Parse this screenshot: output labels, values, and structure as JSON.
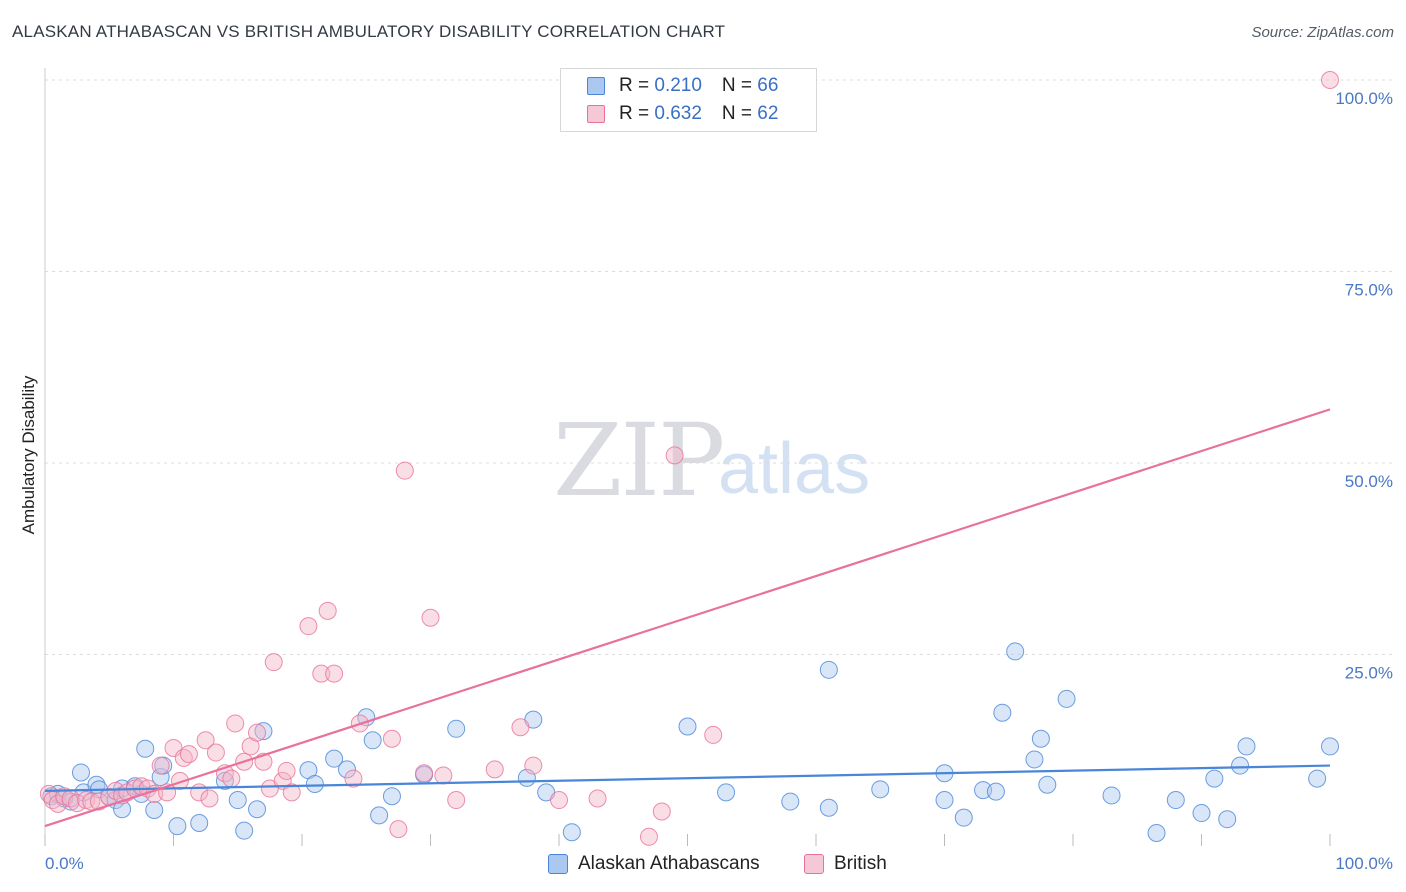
{
  "title": "ALASKAN ATHABASCAN VS BRITISH AMBULATORY DISABILITY CORRELATION CHART",
  "source": "Source: ZipAtlas.com",
  "watermark": {
    "zip": "ZIP",
    "atlas": "atlas"
  },
  "legend": {
    "blue": {
      "r_label": "R = ",
      "r_value": "0.210",
      "n_label": "N = ",
      "n_value": "66"
    },
    "pink": {
      "r_label": "R = ",
      "r_value": "0.632",
      "n_label": "N = ",
      "n_value": "62"
    }
  },
  "bottom_legend": {
    "blue_label": "Alaskan Athabascans",
    "pink_label": "British"
  },
  "colors": {
    "blue": "#4a86d8",
    "pink": "#e8729a",
    "blue_fill": "#aac8f0",
    "pink_fill": "#f5b5c8",
    "tick_text": "#4a78c2"
  },
  "chart_data": {
    "type": "scatter",
    "title": "ALASKAN ATHABASCAN VS BRITISH AMBULATORY DISABILITY CORRELATION CHART",
    "xlabel": "",
    "ylabel": "Ambulatory Disability",
    "xlim": [
      0,
      100
    ],
    "ylim": [
      0,
      100
    ],
    "x_tick_labels": [
      "0.0%",
      "100.0%"
    ],
    "y_ticks": [
      {
        "v": 25,
        "label": "25.0%"
      },
      {
        "v": 50,
        "label": "50.0%"
      },
      {
        "v": 75,
        "label": "75.0%"
      },
      {
        "v": 100,
        "label": "100.0%"
      }
    ],
    "grid": true,
    "series": [
      {
        "name": "Alaskan Athabascans",
        "color": "#4a86d8",
        "trend": {
          "x": [
            0,
            100
          ],
          "y": [
            7.2,
            10.5
          ]
        },
        "points": [
          [
            0.5,
            6.5
          ],
          [
            1,
            6.8
          ],
          [
            1.5,
            6.2
          ],
          [
            2,
            5.8
          ],
          [
            3,
            7.0
          ],
          [
            2.8,
            9.6
          ],
          [
            4,
            8.0
          ],
          [
            4.2,
            7.4
          ],
          [
            5,
            6.4
          ],
          [
            5.5,
            6.0
          ],
          [
            6,
            7.5
          ],
          [
            6,
            4.8
          ],
          [
            7,
            7.8
          ],
          [
            7.5,
            6.8
          ],
          [
            7.8,
            12.7
          ],
          [
            8.5,
            4.7
          ],
          [
            9,
            9.0
          ],
          [
            9.2,
            10.5
          ],
          [
            10.3,
            2.6
          ],
          [
            12,
            3.0
          ],
          [
            14,
            8.5
          ],
          [
            15,
            6.0
          ],
          [
            15.5,
            2.0
          ],
          [
            16.5,
            4.8
          ],
          [
            17,
            15.0
          ],
          [
            20.5,
            9.9
          ],
          [
            21,
            8.1
          ],
          [
            22.5,
            11.4
          ],
          [
            23.5,
            10.0
          ],
          [
            25,
            16.8
          ],
          [
            25.5,
            13.8
          ],
          [
            26,
            4.0
          ],
          [
            27,
            6.5
          ],
          [
            29.5,
            9.3
          ],
          [
            32,
            15.3
          ],
          [
            37.5,
            8.9
          ],
          [
            38,
            16.5
          ],
          [
            39,
            7.0
          ],
          [
            41,
            1.8
          ],
          [
            50,
            15.6
          ],
          [
            53,
            7.0
          ],
          [
            58,
            5.8
          ],
          [
            61,
            5.0
          ],
          [
            65,
            7.4
          ],
          [
            61,
            23.0
          ],
          [
            70,
            9.5
          ],
          [
            70,
            6.0
          ],
          [
            71.5,
            3.7
          ],
          [
            73,
            7.3
          ],
          [
            74,
            7.1
          ],
          [
            74.5,
            17.4
          ],
          [
            75.5,
            25.4
          ],
          [
            77,
            11.3
          ],
          [
            77.5,
            14.0
          ],
          [
            78,
            8.0
          ],
          [
            79.5,
            19.2
          ],
          [
            83,
            6.6
          ],
          [
            86.5,
            1.7
          ],
          [
            88,
            6.0
          ],
          [
            90,
            4.3
          ],
          [
            91,
            8.8
          ],
          [
            92,
            3.5
          ],
          [
            93,
            10.5
          ],
          [
            93.5,
            13.0
          ],
          [
            99,
            8.8
          ],
          [
            100,
            13.0
          ]
        ]
      },
      {
        "name": "British",
        "color": "#e8729a",
        "trend": {
          "x": [
            0,
            100
          ],
          "y": [
            2.6,
            57.0
          ]
        },
        "points": [
          [
            0.3,
            6.8
          ],
          [
            0.6,
            6.0
          ],
          [
            1,
            5.5
          ],
          [
            1.5,
            6.5
          ],
          [
            2,
            6.2
          ],
          [
            2.5,
            5.6
          ],
          [
            3.2,
            6.0
          ],
          [
            3.6,
            5.8
          ],
          [
            4.2,
            5.8
          ],
          [
            5,
            6.4
          ],
          [
            5.5,
            7.2
          ],
          [
            6,
            6.6
          ],
          [
            6.4,
            7.0
          ],
          [
            7,
            7.5
          ],
          [
            7.5,
            7.8
          ],
          [
            8,
            7.5
          ],
          [
            8.5,
            6.8
          ],
          [
            9,
            10.5
          ],
          [
            9.5,
            7.0
          ],
          [
            10,
            12.8
          ],
          [
            10.5,
            8.5
          ],
          [
            10.8,
            11.5
          ],
          [
            11.2,
            12.0
          ],
          [
            12,
            7.0
          ],
          [
            12.5,
            13.8
          ],
          [
            12.8,
            6.2
          ],
          [
            13.3,
            12.2
          ],
          [
            14,
            9.5
          ],
          [
            14.5,
            8.8
          ],
          [
            14.8,
            16.0
          ],
          [
            15.5,
            11.0
          ],
          [
            16,
            13.0
          ],
          [
            16.5,
            14.8
          ],
          [
            17,
            11.0
          ],
          [
            17.5,
            7.5
          ],
          [
            17.8,
            24.0
          ],
          [
            18.5,
            8.5
          ],
          [
            18.8,
            9.8
          ],
          [
            19.2,
            7.0
          ],
          [
            20.5,
            28.7
          ],
          [
            21.5,
            22.5
          ],
          [
            22,
            30.7
          ],
          [
            22.5,
            22.5
          ],
          [
            24,
            8.8
          ],
          [
            24.5,
            16.0
          ],
          [
            27,
            14.0
          ],
          [
            27.5,
            2.2
          ],
          [
            28,
            49.0
          ],
          [
            29.5,
            9.5
          ],
          [
            30,
            29.8
          ],
          [
            31,
            9.2
          ],
          [
            32,
            6.0
          ],
          [
            35,
            10.0
          ],
          [
            37,
            15.5
          ],
          [
            38,
            10.5
          ],
          [
            40,
            6.0
          ],
          [
            43,
            6.2
          ],
          [
            47,
            1.2
          ],
          [
            48,
            4.5
          ],
          [
            49,
            51.0
          ],
          [
            52,
            14.5
          ],
          [
            100,
            100.0
          ]
        ]
      }
    ]
  }
}
